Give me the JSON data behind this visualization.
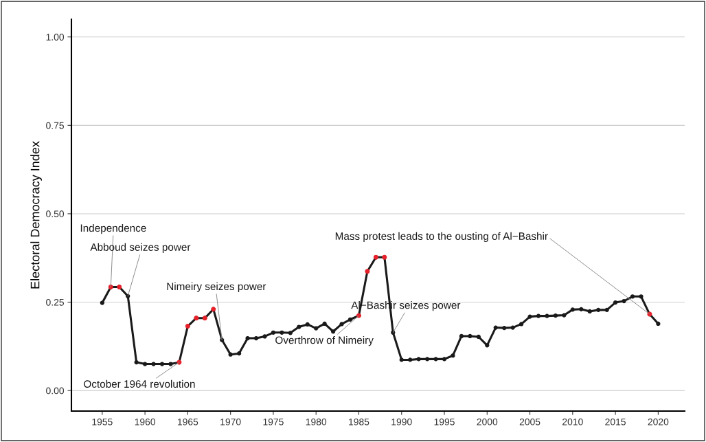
{
  "chart_data": {
    "type": "line",
    "ylabel": "Electoral Democracy Index",
    "x": [
      1955,
      1956,
      1957,
      1958,
      1959,
      1960,
      1961,
      1962,
      1963,
      1964,
      1965,
      1966,
      1967,
      1968,
      1969,
      1970,
      1971,
      1972,
      1973,
      1974,
      1975,
      1976,
      1977,
      1978,
      1979,
      1980,
      1981,
      1982,
      1983,
      1984,
      1985,
      1986,
      1987,
      1988,
      1989,
      1990,
      1991,
      1992,
      1993,
      1994,
      1995,
      1996,
      1997,
      1998,
      1999,
      2000,
      2001,
      2002,
      2003,
      2004,
      2005,
      2006,
      2007,
      2008,
      2009,
      2010,
      2011,
      2012,
      2013,
      2014,
      2015,
      2016,
      2017,
      2018,
      2019,
      2020
    ],
    "series": [
      {
        "color": "#1a1a1a",
        "marker": "circle",
        "values": [
          0.248,
          0.293,
          0.293,
          0.267,
          0.08,
          0.075,
          0.075,
          0.075,
          0.075,
          0.08,
          0.182,
          0.205,
          0.205,
          0.23,
          0.143,
          0.102,
          0.105,
          0.148,
          0.148,
          0.153,
          0.164,
          0.164,
          0.163,
          0.18,
          0.187,
          0.176,
          0.189,
          0.167,
          0.188,
          0.201,
          0.212,
          0.337,
          0.377,
          0.377,
          0.164,
          0.087,
          0.087,
          0.089,
          0.089,
          0.089,
          0.089,
          0.099,
          0.154,
          0.154,
          0.152,
          0.128,
          0.178,
          0.177,
          0.178,
          0.188,
          0.209,
          0.211,
          0.211,
          0.212,
          0.213,
          0.229,
          0.23,
          0.224,
          0.228,
          0.228,
          0.249,
          0.253,
          0.266,
          0.266,
          0.216,
          0.189
        ]
      },
      {
        "type": "scatter",
        "color": "#e8212a",
        "marker": "circle",
        "x": [
          1956,
          1957,
          1964,
          1965,
          1966,
          1967,
          1968,
          1985,
          1986,
          1987,
          1988,
          2019
        ],
        "values": [
          0.293,
          0.293,
          0.08,
          0.182,
          0.205,
          0.205,
          0.23,
          0.212,
          0.337,
          0.377,
          0.377,
          0.216
        ]
      }
    ],
    "annotations": [
      {
        "text": "Independence",
        "x": 1956,
        "y": 0.293
      },
      {
        "text": "Abboud seizes power",
        "x": 1958,
        "y": 0.267
      },
      {
        "text": "October 1964 revolution",
        "x": 1964,
        "y": 0.08
      },
      {
        "text": "Nimeiry seizes power",
        "x": 1969,
        "y": 0.143
      },
      {
        "text": "Overthrow of Nimeiry",
        "x": 1985,
        "y": 0.212
      },
      {
        "text": "Al−Bashir seizes power",
        "x": 1989,
        "y": 0.164
      },
      {
        "text": "Mass protest leads to the ousting of Al−Bashir",
        "x": 2019,
        "y": 0.216
      }
    ],
    "xlim": [
      1951.4,
      2023.1
    ],
    "xticks": [
      1955,
      1960,
      1965,
      1970,
      1975,
      1980,
      1985,
      1990,
      1995,
      2000,
      2005,
      2010,
      2015,
      2020
    ],
    "ylim": [
      -0.058,
      1.05
    ],
    "yticks": [
      {
        "value": 0,
        "label": "0.00"
      },
      {
        "value": 0.25,
        "label": "0.25"
      },
      {
        "value": 0.5,
        "label": "0.50"
      },
      {
        "value": 0.75,
        "label": "0.75"
      },
      {
        "value": 1,
        "label": "1.00"
      }
    ],
    "grid": "y",
    "legend": false
  }
}
